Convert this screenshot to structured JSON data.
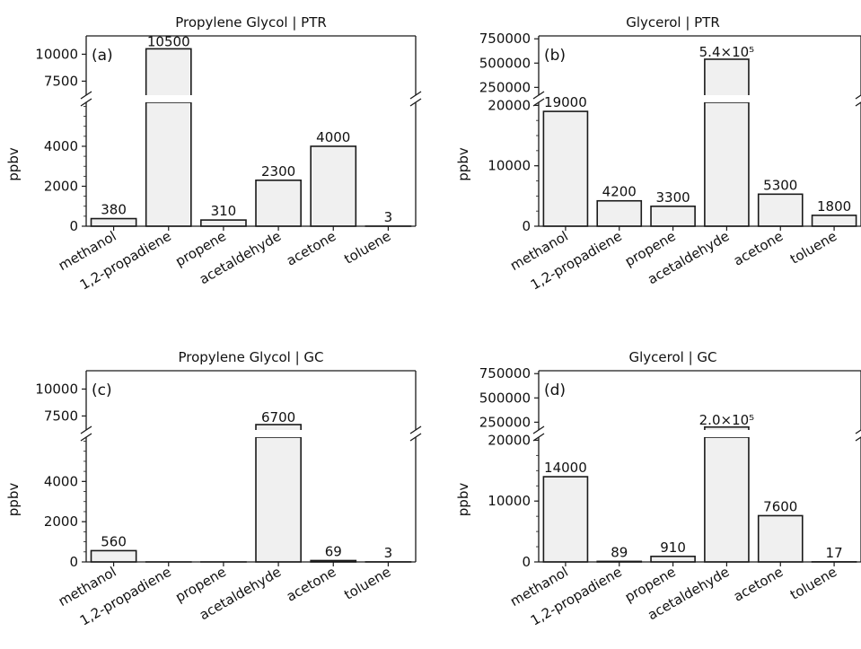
{
  "chart_data": [
    {
      "type": "bar",
      "panel_label": "(a)",
      "title": "Propylene Glycol | PTR",
      "ylabel": "ppbv",
      "categories": [
        "methanol",
        "1,2-propadiene",
        "propene",
        "acetaldehyde",
        "acetone",
        "toluene"
      ],
      "values": [
        380,
        10500,
        310,
        2300,
        4000,
        3
      ],
      "value_labels": [
        "380",
        "10500",
        "310",
        "2300",
        "4000",
        "3"
      ],
      "axis_break": true,
      "lower_ylim": [
        0,
        6200
      ],
      "lower_yticks": [
        "0",
        "2000",
        "4000"
      ],
      "upper_ylim": [
        6200,
        11700
      ],
      "upper_yticks": [
        "7500",
        "10000"
      ]
    },
    {
      "type": "bar",
      "panel_label": "(b)",
      "title": "Glycerol | PTR",
      "ylabel": "ppbv",
      "categories": [
        "methanol",
        "1,2-propadiene",
        "propene",
        "acetaldehyde",
        "acetone",
        "toluene"
      ],
      "values": [
        19000,
        4200,
        3300,
        540000,
        5300,
        1800
      ],
      "value_labels": [
        "19000",
        "4200",
        "3300",
        "5.4×10⁵",
        "5300",
        "1800"
      ],
      "axis_break": true,
      "lower_ylim": [
        0,
        20500
      ],
      "lower_yticks": [
        "0",
        "10000",
        "20000"
      ],
      "upper_ylim": [
        170000,
        780000
      ],
      "upper_yticks": [
        "250000",
        "500000",
        "750000"
      ]
    },
    {
      "type": "bar",
      "panel_label": "(c)",
      "title": "Propylene Glycol | GC",
      "ylabel": "ppbv",
      "categories": [
        "methanol",
        "1,2-propadiene",
        "propene",
        "acetaldehyde",
        "acetone",
        "toluene"
      ],
      "values": [
        560,
        0,
        0,
        6700,
        69,
        3
      ],
      "value_labels": [
        "560",
        "",
        "",
        "6700",
        "69",
        "3"
      ],
      "axis_break": true,
      "lower_ylim": [
        0,
        6200
      ],
      "lower_yticks": [
        "0",
        "2000",
        "4000"
      ],
      "upper_ylim": [
        6200,
        11700
      ],
      "upper_yticks": [
        "7500",
        "10000"
      ]
    },
    {
      "type": "bar",
      "panel_label": "(d)",
      "title": "Glycerol | GC",
      "ylabel": "ppbv",
      "categories": [
        "methanol",
        "1,2-propadiene",
        "propene",
        "acetaldehyde",
        "acetone",
        "toluene"
      ],
      "values": [
        14000,
        89,
        910,
        200000,
        7600,
        17
      ],
      "value_labels": [
        "14000",
        "89",
        "910",
        "2.0×10⁵",
        "7600",
        "17"
      ],
      "axis_break": true,
      "lower_ylim": [
        0,
        20500
      ],
      "lower_yticks": [
        "0",
        "10000",
        "20000"
      ],
      "upper_ylim": [
        170000,
        780000
      ],
      "upper_yticks": [
        "250000",
        "500000",
        "750000"
      ]
    }
  ],
  "style": {
    "bar_fill": "#f0f0f0",
    "bar_stroke": "#1a1a1a",
    "axis_color": "#1a1a1a"
  }
}
